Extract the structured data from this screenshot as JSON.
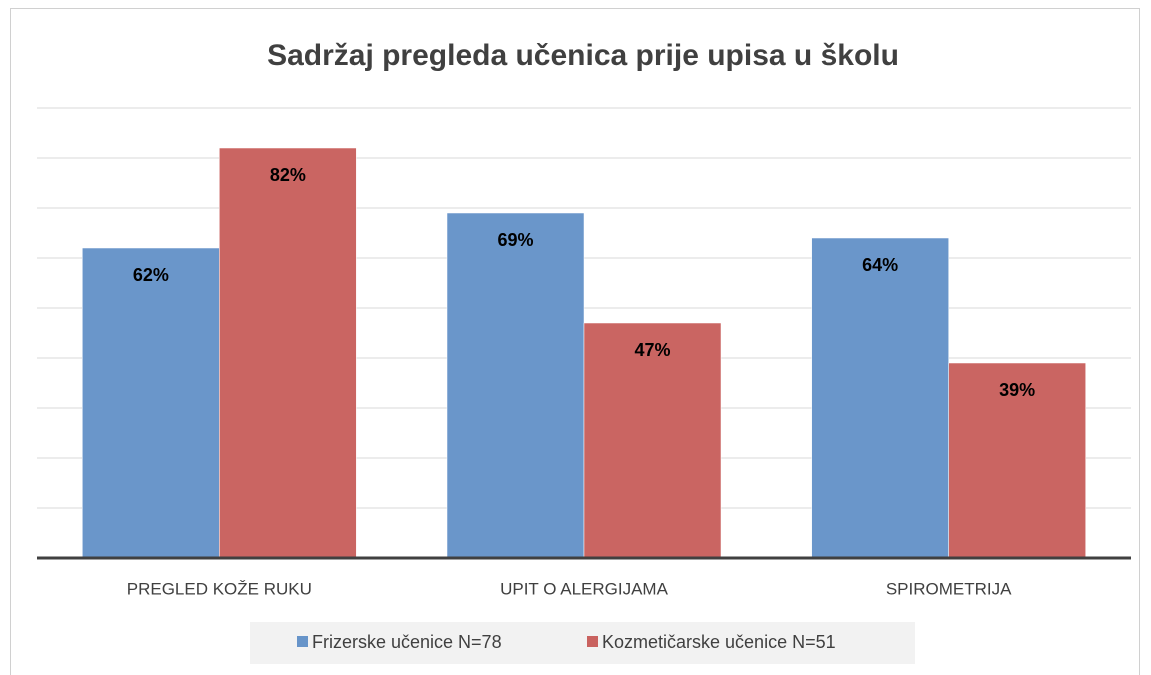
{
  "chart_data": {
    "type": "bar",
    "title": "Sadržaj pregleda učenica prije upisa u školu",
    "categories": [
      "PREGLED KOŽE RUKU",
      "UPIT O ALERGIJAMA",
      "SPIROMETRIJA"
    ],
    "series": [
      {
        "name": "Frizerske učenice N=78",
        "color": "#6794c9",
        "values": [
          62,
          69,
          64
        ],
        "value_labels": [
          "62%",
          "69%",
          "64%"
        ]
      },
      {
        "name": "Kozmetičarske učenice N=51",
        "color": "#c9625f",
        "values": [
          82,
          47,
          39
        ],
        "value_labels": [
          "82%",
          "47%",
          "39%"
        ]
      }
    ],
    "ylim": [
      0,
      90
    ],
    "yticks": [
      0,
      10,
      20,
      30,
      40,
      50,
      60,
      70,
      80,
      90
    ],
    "grid": true,
    "legend": "bottom"
  }
}
